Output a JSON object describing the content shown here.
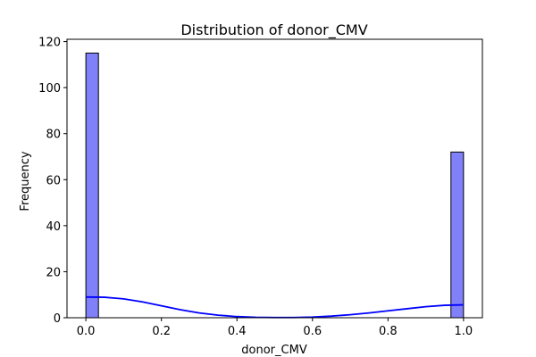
{
  "chart_data": {
    "type": "bar",
    "title": "Distribution of donor_CMV",
    "xlabel": "donor_CMV",
    "ylabel": "Frequency",
    "xlim": [
      -0.05,
      1.05
    ],
    "ylim": [
      0,
      121
    ],
    "xticks": [
      0.0,
      0.2,
      0.4,
      0.6,
      0.8,
      1.0
    ],
    "xtick_labels": [
      "0.0",
      "0.2",
      "0.4",
      "0.6",
      "0.8",
      "1.0"
    ],
    "yticks": [
      0,
      20,
      40,
      60,
      80,
      100,
      120
    ],
    "ytick_labels": [
      "0",
      "20",
      "40",
      "60",
      "80",
      "100",
      "120"
    ],
    "grid": false,
    "bins": [
      {
        "x0": 0.0,
        "x1": 0.0333,
        "count": 115
      },
      {
        "x0": 0.9667,
        "x1": 1.0,
        "count": 72
      }
    ],
    "kde": {
      "x": [
        0.0,
        0.05,
        0.1,
        0.15,
        0.2,
        0.25,
        0.3,
        0.35,
        0.4,
        0.45,
        0.5,
        0.55,
        0.6,
        0.65,
        0.7,
        0.75,
        0.8,
        0.85,
        0.9,
        0.95,
        1.0
      ],
      "y": [
        9.0,
        8.9,
        8.2,
        6.9,
        5.2,
        3.5,
        2.1,
        1.1,
        0.5,
        0.2,
        0.1,
        0.1,
        0.3,
        0.7,
        1.3,
        2.1,
        3.0,
        3.9,
        4.8,
        5.4,
        5.6
      ]
    },
    "colors": {
      "bar_fill": "#8080f8",
      "bar_edge": "#000000",
      "kde_line": "#0000ff"
    }
  }
}
